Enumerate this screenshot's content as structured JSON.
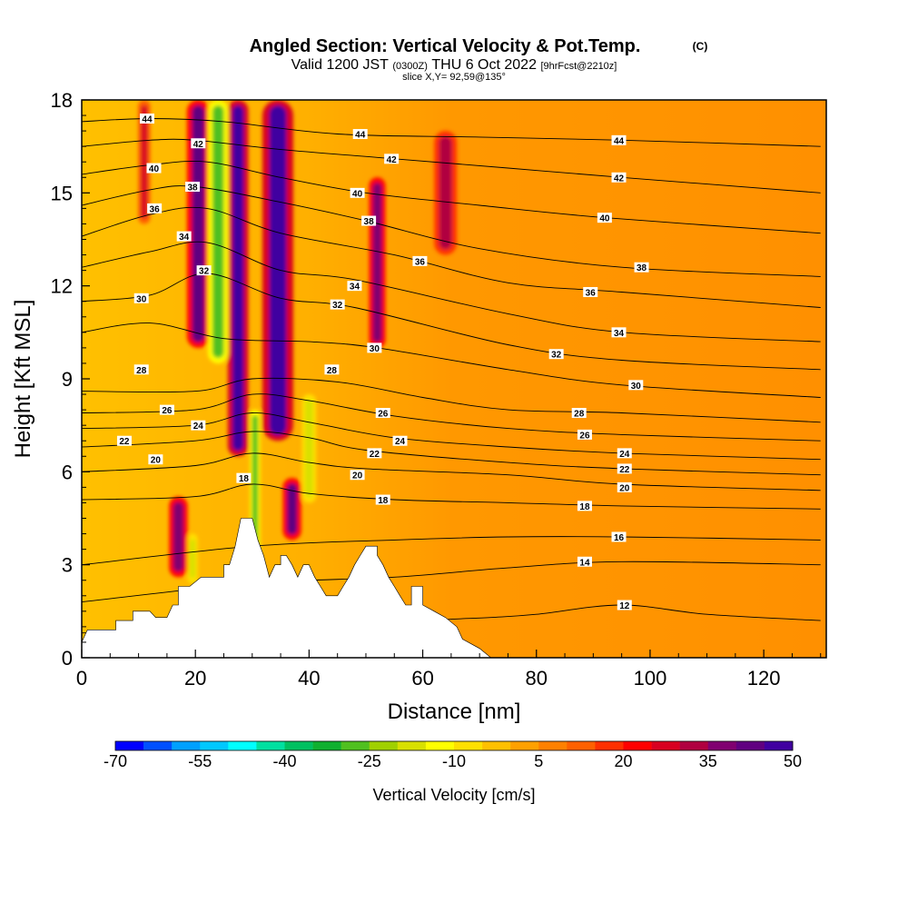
{
  "title": {
    "main": "Angled Section: Vertical Velocity & Pot.Temp.",
    "main_suffix": "(C)",
    "valid_prefix": "Valid 1200 JST",
    "valid_utc": "(0300Z)",
    "valid_date": "THU 6 Oct 2022",
    "valid_fcst": "[9hrFcst@2210z]",
    "slice": "slice X,Y= 92,59@135°"
  },
  "chart_data": {
    "type": "heatmap",
    "xlabel": "Distance [nm]",
    "ylabel": "Height [Kft MSL]",
    "xlim": [
      0,
      131
    ],
    "ylim": [
      0,
      18
    ],
    "x_ticks": [
      0,
      20,
      40,
      60,
      80,
      100,
      120
    ],
    "y_ticks": [
      0,
      3,
      6,
      9,
      12,
      15,
      18
    ],
    "colorbar": {
      "label": "Vertical Velocity [cm/s]",
      "tick_labels": [
        "-70",
        "-55",
        "-40",
        "-25",
        "-10",
        "5",
        "20",
        "35",
        "50"
      ],
      "tick_values": [
        -70,
        -55,
        -40,
        -25,
        -10,
        5,
        20,
        35,
        50
      ],
      "colors": [
        "#0000ff",
        "#0050ff",
        "#00a0ff",
        "#00c8ff",
        "#00ffff",
        "#00e0a0",
        "#00c060",
        "#10b030",
        "#50c020",
        "#a0d000",
        "#d8e000",
        "#ffff00",
        "#ffe000",
        "#ffc000",
        "#ffa000",
        "#ff8000",
        "#ff6000",
        "#ff3000",
        "#ff0000",
        "#d80020",
        "#b00040",
        "#800070",
        "#600080",
        "#4000a0"
      ]
    },
    "velocity_features": [
      {
        "center_x": 20.5,
        "bottom": 10.0,
        "top": 18,
        "width": 2.2,
        "value": 40
      },
      {
        "center_x": 17.0,
        "bottom": 2.6,
        "top": 5.2,
        "width": 1.8,
        "value": 38
      },
      {
        "center_x": 27.5,
        "bottom": 6.5,
        "top": 18,
        "width": 2.0,
        "value": 48
      },
      {
        "center_x": 34.5,
        "bottom": 7.0,
        "top": 18,
        "width": 3.0,
        "value": 46
      },
      {
        "center_x": 37.0,
        "bottom": 3.8,
        "top": 5.8,
        "width": 1.8,
        "value": 40
      },
      {
        "center_x": 52.0,
        "bottom": 10.0,
        "top": 15.5,
        "width": 1.6,
        "value": 38
      },
      {
        "center_x": 64.0,
        "bottom": 13.0,
        "top": 17.0,
        "width": 2.2,
        "value": 30
      },
      {
        "center_x": 11.0,
        "bottom": 14.0,
        "top": 18,
        "width": 1.2,
        "value": 25
      },
      {
        "center_x": 24.0,
        "bottom": 9.5,
        "top": 18,
        "width": 2.0,
        "value": -28
      },
      {
        "center_x": 30.5,
        "bottom": 2.8,
        "top": 8.0,
        "width": 1.0,
        "value": -30
      },
      {
        "center_x": 40.0,
        "bottom": 5.0,
        "top": 8.5,
        "width": 1.4,
        "value": -20
      },
      {
        "center_x": 19.5,
        "bottom": 2.4,
        "top": 4.0,
        "width": 1.0,
        "value": -18
      }
    ],
    "terrain": [
      [
        0,
        0.5
      ],
      [
        1,
        0.9
      ],
      [
        6,
        0.9
      ],
      [
        6,
        1.2
      ],
      [
        9,
        1.2
      ],
      [
        9,
        1.5
      ],
      [
        12,
        1.5
      ],
      [
        13,
        1.3
      ],
      [
        15,
        1.3
      ],
      [
        16,
        1.7
      ],
      [
        17,
        1.7
      ],
      [
        17,
        2.3
      ],
      [
        19,
        2.3
      ],
      [
        21,
        2.6
      ],
      [
        23,
        2.6
      ],
      [
        25,
        2.6
      ],
      [
        25,
        3.0
      ],
      [
        26,
        3.0
      ],
      [
        27,
        3.6
      ],
      [
        28,
        4.5
      ],
      [
        30,
        4.5
      ],
      [
        31,
        3.8
      ],
      [
        32,
        3.3
      ],
      [
        33,
        2.6
      ],
      [
        34,
        3.0
      ],
      [
        35,
        3.0
      ],
      [
        35,
        3.3
      ],
      [
        36,
        3.3
      ],
      [
        37,
        3.0
      ],
      [
        38,
        2.6
      ],
      [
        39,
        3.0
      ],
      [
        40,
        3.0
      ],
      [
        41,
        2.6
      ],
      [
        42,
        2.3
      ],
      [
        43,
        2.0
      ],
      [
        45,
        2.0
      ],
      [
        46,
        2.3
      ],
      [
        47,
        2.6
      ],
      [
        48,
        3.0
      ],
      [
        49,
        3.3
      ],
      [
        50,
        3.6
      ],
      [
        52,
        3.6
      ],
      [
        52,
        3.3
      ],
      [
        53,
        3.0
      ],
      [
        54,
        2.6
      ],
      [
        55,
        2.3
      ],
      [
        56,
        2.0
      ],
      [
        57,
        1.7
      ],
      [
        58,
        1.7
      ],
      [
        58,
        2.3
      ],
      [
        60,
        2.3
      ],
      [
        60,
        1.7
      ],
      [
        62,
        1.5
      ],
      [
        64,
        1.3
      ],
      [
        66,
        1.0
      ],
      [
        67,
        0.6
      ],
      [
        70,
        0.3
      ],
      [
        72,
        0
      ],
      [
        131,
        0
      ]
    ],
    "theta_contours": [
      {
        "value": 12,
        "x": [
          [
            0,
            0.8
          ],
          [
            30,
            0.9
          ],
          [
            60,
            1.2
          ],
          [
            72,
            1.3
          ],
          [
            80,
            1.4
          ],
          [
            95,
            1.7
          ],
          [
            110,
            1.4
          ],
          [
            130,
            1.2
          ]
        ]
      },
      {
        "value": 14,
        "x": [
          [
            0,
            1.8
          ],
          [
            30,
            2.4
          ],
          [
            55,
            2.6
          ],
          [
            75,
            2.9
          ],
          [
            95,
            3.1
          ],
          [
            130,
            3.0
          ]
        ]
      },
      {
        "value": 16,
        "x": [
          [
            0,
            3.0
          ],
          [
            30,
            3.6
          ],
          [
            55,
            3.8
          ],
          [
            75,
            3.9
          ],
          [
            95,
            3.9
          ],
          [
            130,
            3.8
          ]
        ]
      },
      {
        "value": 18,
        "x": [
          [
            0,
            5.1
          ],
          [
            20,
            5.2
          ],
          [
            30,
            5.6
          ],
          [
            40,
            5.3
          ],
          [
            55,
            5.1
          ],
          [
            75,
            5.0
          ],
          [
            95,
            4.9
          ],
          [
            130,
            4.8
          ]
        ]
      },
      {
        "value": 20,
        "x": [
          [
            0,
            6.0
          ],
          [
            20,
            6.2
          ],
          [
            30,
            6.6
          ],
          [
            40,
            6.3
          ],
          [
            50,
            6.1
          ],
          [
            75,
            5.9
          ],
          [
            95,
            5.6
          ],
          [
            130,
            5.4
          ]
        ]
      },
      {
        "value": 22,
        "x": [
          [
            0,
            6.8
          ],
          [
            20,
            7.0
          ],
          [
            30,
            7.3
          ],
          [
            40,
            7.1
          ],
          [
            50,
            6.7
          ],
          [
            75,
            6.3
          ],
          [
            95,
            6.1
          ],
          [
            130,
            5.9
          ]
        ]
      },
      {
        "value": 24,
        "x": [
          [
            0,
            7.4
          ],
          [
            20,
            7.5
          ],
          [
            30,
            7.9
          ],
          [
            40,
            7.6
          ],
          [
            55,
            7.1
          ],
          [
            75,
            6.8
          ],
          [
            95,
            6.6
          ],
          [
            130,
            6.4
          ]
        ]
      },
      {
        "value": 26,
        "x": [
          [
            0,
            7.9
          ],
          [
            20,
            8.0
          ],
          [
            30,
            8.5
          ],
          [
            40,
            8.3
          ],
          [
            55,
            7.8
          ],
          [
            75,
            7.4
          ],
          [
            95,
            7.2
          ],
          [
            130,
            7.0
          ]
        ]
      },
      {
        "value": 28,
        "x": [
          [
            0,
            8.6
          ],
          [
            20,
            8.6
          ],
          [
            30,
            9.0
          ],
          [
            45,
            8.9
          ],
          [
            60,
            8.4
          ],
          [
            75,
            8.0
          ],
          [
            95,
            7.9
          ],
          [
            130,
            7.6
          ]
        ]
      },
      {
        "value": 30,
        "x": [
          [
            0,
            10.5
          ],
          [
            12,
            10.8
          ],
          [
            25,
            10.3
          ],
          [
            40,
            10.2
          ],
          [
            52,
            10.0
          ],
          [
            75,
            9.3
          ],
          [
            95,
            8.8
          ],
          [
            130,
            8.4
          ]
        ]
      },
      {
        "value": 32,
        "x": [
          [
            0,
            11.5
          ],
          [
            12,
            11.7
          ],
          [
            22,
            12.4
          ],
          [
            35,
            11.6
          ],
          [
            48,
            11.3
          ],
          [
            75,
            10.1
          ],
          [
            95,
            9.6
          ],
          [
            130,
            9.3
          ]
        ]
      },
      {
        "value": 34,
        "x": [
          [
            0,
            12.6
          ],
          [
            12,
            13.1
          ],
          [
            22,
            13.4
          ],
          [
            35,
            12.5
          ],
          [
            48,
            12.2
          ],
          [
            75,
            11.1
          ],
          [
            95,
            10.5
          ],
          [
            130,
            10.2
          ]
        ]
      },
      {
        "value": 36,
        "x": [
          [
            0,
            13.6
          ],
          [
            12,
            14.3
          ],
          [
            22,
            14.5
          ],
          [
            35,
            13.7
          ],
          [
            55,
            13.0
          ],
          [
            75,
            12.1
          ],
          [
            95,
            11.8
          ],
          [
            130,
            11.3
          ]
        ]
      },
      {
        "value": 38,
        "x": [
          [
            0,
            14.6
          ],
          [
            12,
            15.1
          ],
          [
            20,
            15.2
          ],
          [
            35,
            14.7
          ],
          [
            50,
            14.1
          ],
          [
            70,
            13.2
          ],
          [
            95,
            12.6
          ],
          [
            130,
            12.3
          ]
        ]
      },
      {
        "value": 40,
        "x": [
          [
            0,
            15.6
          ],
          [
            12,
            15.9
          ],
          [
            22,
            16.0
          ],
          [
            35,
            15.5
          ],
          [
            50,
            15.0
          ],
          [
            70,
            14.6
          ],
          [
            92,
            14.2
          ],
          [
            130,
            13.7
          ]
        ]
      },
      {
        "value": 42,
        "x": [
          [
            0,
            16.5
          ],
          [
            12,
            16.7
          ],
          [
            20,
            16.7
          ],
          [
            35,
            16.4
          ],
          [
            55,
            16.1
          ],
          [
            75,
            15.8
          ],
          [
            95,
            15.5
          ],
          [
            130,
            15.0
          ]
        ]
      },
      {
        "value": 44,
        "x": [
          [
            0,
            17.3
          ],
          [
            12,
            17.4
          ],
          [
            25,
            17.3
          ],
          [
            45,
            16.9
          ],
          [
            70,
            16.8
          ],
          [
            95,
            16.7
          ],
          [
            130,
            16.5
          ]
        ]
      }
    ],
    "theta_labels": [
      {
        "text": "44",
        "x": 11.5,
        "y": 17.4
      },
      {
        "text": "42",
        "x": 20.5,
        "y": 16.6
      },
      {
        "text": "40",
        "x": 12.7,
        "y": 15.8
      },
      {
        "text": "38",
        "x": 19.5,
        "y": 15.2
      },
      {
        "text": "36",
        "x": 12.8,
        "y": 14.5
      },
      {
        "text": "34",
        "x": 18.0,
        "y": 13.6
      },
      {
        "text": "32",
        "x": 21.5,
        "y": 12.5
      },
      {
        "text": "30",
        "x": 10.5,
        "y": 11.6
      },
      {
        "text": "28",
        "x": 10.5,
        "y": 9.3
      },
      {
        "text": "26",
        "x": 15.0,
        "y": 8.0
      },
      {
        "text": "24",
        "x": 20.5,
        "y": 7.5
      },
      {
        "text": "22",
        "x": 7.5,
        "y": 7.0
      },
      {
        "text": "20",
        "x": 13.0,
        "y": 6.4
      },
      {
        "text": "18",
        "x": 28.5,
        "y": 5.8
      },
      {
        "text": "44",
        "x": 49.0,
        "y": 16.9
      },
      {
        "text": "42",
        "x": 54.5,
        "y": 16.1
      },
      {
        "text": "40",
        "x": 48.5,
        "y": 15.0
      },
      {
        "text": "38",
        "x": 50.5,
        "y": 14.1
      },
      {
        "text": "36",
        "x": 59.5,
        "y": 12.8
      },
      {
        "text": "34",
        "x": 48.0,
        "y": 12.0
      },
      {
        "text": "32",
        "x": 45.0,
        "y": 11.4
      },
      {
        "text": "30",
        "x": 51.5,
        "y": 10.0
      },
      {
        "text": "28",
        "x": 44.0,
        "y": 9.3
      },
      {
        "text": "26",
        "x": 53.0,
        "y": 7.9
      },
      {
        "text": "24",
        "x": 56.0,
        "y": 7.0
      },
      {
        "text": "22",
        "x": 51.5,
        "y": 6.6
      },
      {
        "text": "20",
        "x": 48.5,
        "y": 5.9
      },
      {
        "text": "18",
        "x": 53.0,
        "y": 5.1
      },
      {
        "text": "44",
        "x": 94.5,
        "y": 16.7
      },
      {
        "text": "42",
        "x": 94.5,
        "y": 15.5
      },
      {
        "text": "40",
        "x": 92.0,
        "y": 14.2
      },
      {
        "text": "38",
        "x": 98.5,
        "y": 12.6
      },
      {
        "text": "36",
        "x": 89.5,
        "y": 11.8
      },
      {
        "text": "34",
        "x": 94.5,
        "y": 10.5
      },
      {
        "text": "32",
        "x": 83.5,
        "y": 9.8
      },
      {
        "text": "30",
        "x": 97.5,
        "y": 8.8
      },
      {
        "text": "28",
        "x": 87.5,
        "y": 7.9
      },
      {
        "text": "26",
        "x": 88.5,
        "y": 7.2
      },
      {
        "text": "24",
        "x": 95.5,
        "y": 6.6
      },
      {
        "text": "22",
        "x": 95.5,
        "y": 6.1
      },
      {
        "text": "20",
        "x": 95.5,
        "y": 5.5
      },
      {
        "text": "18",
        "x": 88.5,
        "y": 4.9
      },
      {
        "text": "16",
        "x": 94.5,
        "y": 3.9
      },
      {
        "text": "14",
        "x": 88.5,
        "y": 3.1
      },
      {
        "text": "12",
        "x": 95.5,
        "y": 1.7
      }
    ]
  }
}
